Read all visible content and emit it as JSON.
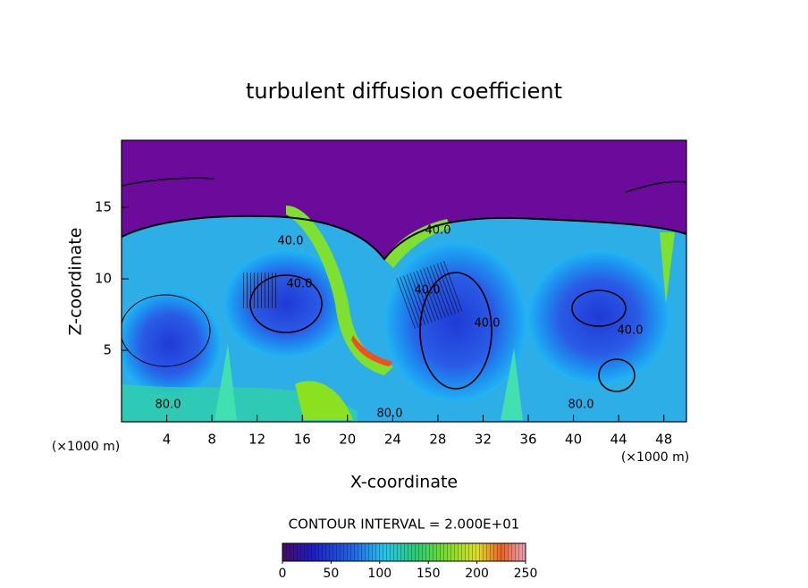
{
  "chart_data": {
    "type": "contour",
    "title": "turbulent diffusion coefficient",
    "x_label": "X-coordinate",
    "y_label": "Z-coordinate",
    "x_unit": "(×1000 m)",
    "y_unit": "(×1000 m)",
    "xlim": [
      0,
      50
    ],
    "xticks": [
      4,
      8,
      12,
      16,
      20,
      24,
      28,
      32,
      36,
      40,
      44,
      48
    ],
    "ylim": [
      0,
      19.7
    ],
    "yticks": [
      5,
      10,
      15
    ],
    "contour_labels": [
      "40.0",
      "40.0",
      "40.0",
      "40.0",
      "40.0",
      "40.0",
      "80.0",
      "80.0",
      "80.0"
    ],
    "contour_interval_label": "CONTOUR INTERVAL = 2.000E+01",
    "colorbar": {
      "lim": [
        0,
        250
      ],
      "ticks": [
        0,
        50,
        100,
        150,
        200,
        250
      ]
    }
  }
}
